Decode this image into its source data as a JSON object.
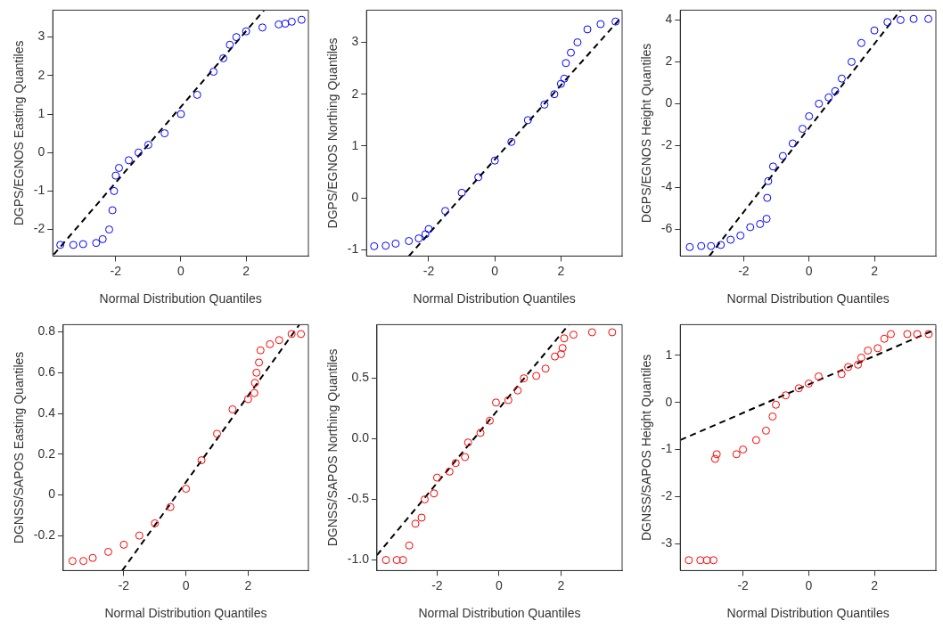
{
  "chart_data": [
    {
      "type": "scatter",
      "xlabel": "Normal Distribution Quantiles",
      "ylabel": "DGPS/EGNOS Easting Quantiles",
      "xlim": [
        -3.93,
        3.91
      ],
      "xticks": [
        -2,
        0,
        2
      ],
      "ylim": [
        -2.69,
        3.7
      ],
      "yticks": [
        -2,
        -1,
        0,
        1,
        2,
        3
      ],
      "grid": false,
      "legend": false,
      "marker": "circle",
      "series": [
        {
          "type": "scatter",
          "color": "#0000ff",
          "x": [
            -3.7,
            -3.3,
            -3.0,
            -2.6,
            -2.4,
            -2.2,
            -2.1,
            -2.05,
            -2.0,
            -1.9,
            -1.6,
            -1.3,
            -1.0,
            -0.5,
            0,
            0.5,
            1.0,
            1.3,
            1.5,
            1.7,
            2.0,
            2.5,
            3.0,
            3.2,
            3.4,
            3.7
          ],
          "values": [
            -2.4,
            -2.4,
            -2.38,
            -2.35,
            -2.25,
            -2.0,
            -1.5,
            -1.0,
            -0.6,
            -0.4,
            -0.2,
            0.0,
            0.2,
            0.5,
            1.0,
            1.5,
            2.1,
            2.45,
            2.8,
            3.0,
            3.15,
            3.25,
            3.33,
            3.35,
            3.4,
            3.45
          ]
        },
        {
          "type": "line",
          "color": "#000000",
          "line_style": "dashed",
          "marker": "none",
          "x": [
            -3.9,
            2.55
          ],
          "values": [
            -2.65,
            3.7
          ]
        }
      ]
    },
    {
      "type": "scatter",
      "xlabel": "Normal Distribution Quantiles",
      "ylabel": "DGPS/EGNOS Northing Quantiles",
      "xlim": [
        -3.88,
        3.85
      ],
      "xticks": [
        -2,
        0,
        2
      ],
      "ylim": [
        -1.12,
        3.62
      ],
      "yticks": [
        -1,
        0,
        1,
        2,
        3
      ],
      "grid": false,
      "legend": false,
      "marker": "circle",
      "series": [
        {
          "type": "scatter",
          "color": "#0000ff",
          "x": [
            -3.65,
            -3.3,
            -3.0,
            -2.6,
            -2.3,
            -2.1,
            -2.0,
            -1.5,
            -1.0,
            -0.5,
            0,
            0.5,
            1.0,
            1.5,
            1.8,
            2.0,
            2.1,
            2.15,
            2.3,
            2.5,
            2.8,
            3.2,
            3.65
          ],
          "values": [
            -0.93,
            -0.92,
            -0.88,
            -0.83,
            -0.78,
            -0.7,
            -0.6,
            -0.25,
            0.1,
            0.4,
            0.72,
            1.08,
            1.5,
            1.8,
            2.0,
            2.2,
            2.3,
            2.6,
            2.8,
            3.0,
            3.25,
            3.35,
            3.4
          ]
        },
        {
          "type": "line",
          "color": "#000000",
          "line_style": "dashed",
          "marker": "none",
          "x": [
            -2.6,
            3.85
          ],
          "values": [
            -1.12,
            3.5
          ]
        }
      ]
    },
    {
      "type": "scatter",
      "xlabel": "Normal Distribution Quantiles",
      "ylabel": "DGPS/EGNOS Height Quantiles",
      "xlim": [
        -3.94,
        3.88
      ],
      "xticks": [
        -2,
        0,
        2
      ],
      "ylim": [
        -7.28,
        4.47
      ],
      "yticks": [
        -6,
        -4,
        -2,
        0,
        2,
        4
      ],
      "grid": false,
      "legend": false,
      "marker": "circle",
      "series": [
        {
          "type": "scatter",
          "color": "#0000ff",
          "x": [
            -3.65,
            -3.3,
            -3.0,
            -2.7,
            -2.4,
            -2.1,
            -1.8,
            -1.5,
            -1.3,
            -1.28,
            -1.25,
            -1.1,
            -0.8,
            -0.5,
            -0.2,
            0,
            0.3,
            0.6,
            0.8,
            1.0,
            1.3,
            1.6,
            2.0,
            2.4,
            2.8,
            3.2,
            3.65
          ],
          "values": [
            -6.85,
            -6.8,
            -6.8,
            -6.75,
            -6.5,
            -6.3,
            -5.9,
            -5.75,
            -5.5,
            -4.5,
            -3.7,
            -3.0,
            -2.5,
            -1.9,
            -1.2,
            -0.6,
            0,
            0.3,
            0.6,
            1.2,
            2.0,
            2.9,
            3.5,
            3.9,
            4.0,
            4.05,
            4.05
          ]
        },
        {
          "type": "line",
          "color": "#000000",
          "line_style": "dashed",
          "marker": "none",
          "x": [
            -3.05,
            2.8
          ],
          "values": [
            -7.28,
            4.47
          ]
        }
      ]
    },
    {
      "type": "scatter",
      "xlabel": "Normal Distribution Quantiles",
      "ylabel": "DGNSS/SAPOS Easting Quantiles",
      "xlim": [
        -3.95,
        3.94
      ],
      "xticks": [
        -2,
        0,
        2
      ],
      "ylim": [
        -0.372,
        0.836
      ],
      "yticks": [
        -0.2,
        0,
        0.2,
        0.4,
        0.6,
        0.8
      ],
      "grid": false,
      "legend": false,
      "marker": "circle",
      "series": [
        {
          "type": "scatter",
          "color": "#ff0000",
          "x": [
            -3.65,
            -3.3,
            -3.0,
            -2.5,
            -2.0,
            -1.5,
            -1.0,
            -0.5,
            0,
            0.5,
            1.0,
            1.5,
            2.0,
            2.2,
            2.22,
            2.27,
            2.35,
            2.4,
            2.7,
            3.0,
            3.4,
            3.7
          ],
          "values": [
            -0.325,
            -0.325,
            -0.31,
            -0.28,
            -0.245,
            -0.2,
            -0.14,
            -0.06,
            0.03,
            0.17,
            0.3,
            0.42,
            0.47,
            0.5,
            0.55,
            0.6,
            0.65,
            0.71,
            0.74,
            0.76,
            0.79,
            0.79
          ]
        },
        {
          "type": "line",
          "color": "#000000",
          "line_style": "dashed",
          "marker": "none",
          "x": [
            -2.05,
            3.65
          ],
          "values": [
            -0.372,
            0.836
          ]
        }
      ]
    },
    {
      "type": "scatter",
      "xlabel": "Normal Distribution Quantiles",
      "ylabel": "DGNSS/SAPOS Northing Quantiles",
      "xlim": [
        -3.94,
        3.97
      ],
      "xticks": [
        -2,
        0,
        2
      ],
      "ylim": [
        -1.087,
        0.943
      ],
      "yticks": [
        {
          "value": -1,
          "label": "-1.0"
        },
        {
          "value": -0.5,
          "label": "-0.5"
        },
        {
          "value": 0,
          "label": "0.0"
        },
        {
          "value": 0.5,
          "label": "0.5"
        }
      ],
      "grid": false,
      "legend": false,
      "marker": "circle",
      "series": [
        {
          "type": "scatter",
          "color": "#ff0000",
          "x": [
            -3.65,
            -3.3,
            -3.1,
            -2.9,
            -2.7,
            -2.5,
            -2.4,
            -2.1,
            -2.0,
            -1.6,
            -1.4,
            -1.1,
            -1.0,
            -0.6,
            -0.3,
            -0.1,
            0.3,
            0.6,
            0.8,
            1.2,
            1.5,
            1.8,
            2.0,
            2.05,
            2.1,
            2.4,
            3.0,
            3.65
          ],
          "values": [
            -1.0,
            -1.0,
            -1.0,
            -0.88,
            -0.7,
            -0.65,
            -0.5,
            -0.45,
            -0.32,
            -0.27,
            -0.2,
            -0.15,
            -0.03,
            0.05,
            0.15,
            0.3,
            0.32,
            0.4,
            0.5,
            0.52,
            0.58,
            0.68,
            0.7,
            0.75,
            0.83,
            0.86,
            0.88,
            0.88
          ]
        },
        {
          "type": "line",
          "color": "#000000",
          "line_style": "dashed",
          "marker": "none",
          "x": [
            -3.94,
            2.25
          ],
          "values": [
            -0.96,
            0.943
          ]
        }
      ]
    },
    {
      "type": "scatter",
      "xlabel": "Normal Distribution Quantiles",
      "ylabel": "DGNSS/SAPOS Height Quantiles",
      "xlim": [
        -3.91,
        3.87
      ],
      "xticks": [
        -2,
        0,
        2
      ],
      "ylim": [
        -3.57,
        1.65
      ],
      "yticks": [
        -3,
        -2,
        -1,
        0,
        1
      ],
      "grid": false,
      "legend": false,
      "marker": "circle",
      "series": [
        {
          "type": "scatter",
          "color": "#ff0000",
          "x": [
            -3.65,
            -3.3,
            -3.1,
            -2.9,
            -2.85,
            -2.8,
            -2.2,
            -2.0,
            -1.6,
            -1.3,
            -1.1,
            -1.0,
            -0.7,
            -0.3,
            0,
            0.3,
            1.0,
            1.2,
            1.5,
            1.6,
            1.8,
            2.1,
            2.3,
            2.5,
            3.0,
            3.3,
            3.65
          ],
          "values": [
            -3.35,
            -3.35,
            -3.35,
            -3.35,
            -1.2,
            -1.1,
            -1.1,
            -1.0,
            -0.8,
            -0.6,
            -0.3,
            -0.05,
            0.15,
            0.3,
            0.4,
            0.55,
            0.6,
            0.75,
            0.8,
            0.95,
            1.1,
            1.15,
            1.35,
            1.45,
            1.45,
            1.45,
            1.45
          ]
        },
        {
          "type": "line",
          "color": "#000000",
          "line_style": "dashed",
          "marker": "none",
          "x": [
            -3.91,
            3.87
          ],
          "values": [
            -0.8,
            1.55
          ]
        }
      ]
    }
  ]
}
